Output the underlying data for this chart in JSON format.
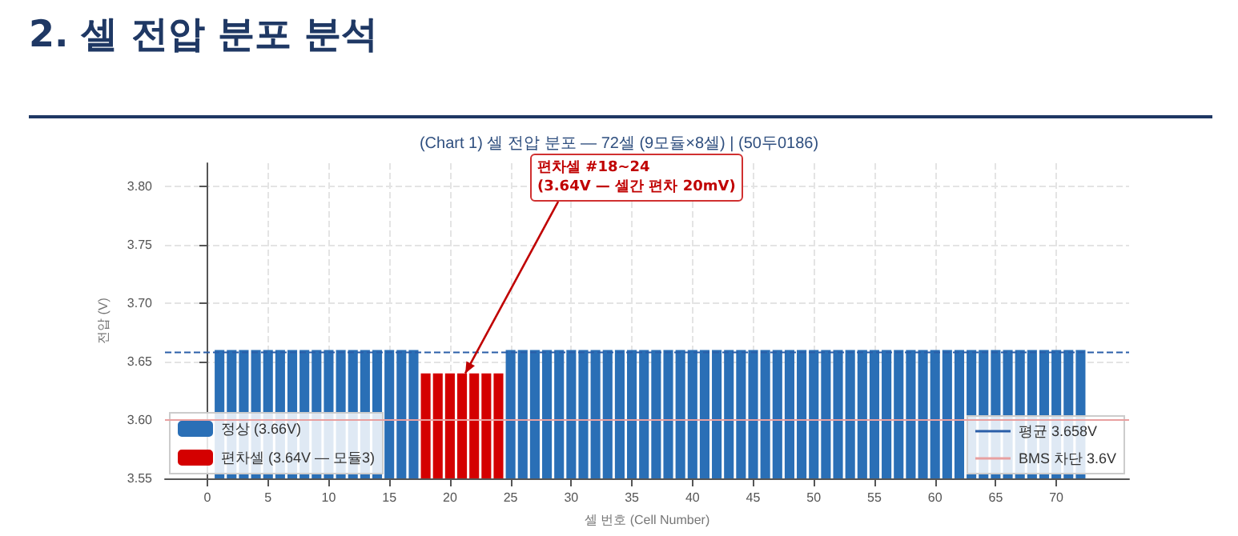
{
  "chart_data": {
    "type": "bar",
    "title": "2. 셀 전압 분포 분석",
    "subtitle": "(Chart 1) 셀 전압 분포 — 72셀 (9모듈×8셀) | (50두0186)",
    "xlabel": "셀 번호 (Cell Number)",
    "ylabel": "전압 (V)",
    "series": [
      {
        "name": "정상 (3.66V)",
        "color": "#2a6fb6",
        "x": [
          1,
          2,
          3,
          4,
          5,
          6,
          7,
          8,
          9,
          10,
          11,
          12,
          13,
          14,
          15,
          16,
          17,
          25,
          26,
          27,
          28,
          29,
          30,
          31,
          32,
          33,
          34,
          35,
          36,
          37,
          38,
          39,
          40,
          41,
          42,
          43,
          44,
          45,
          46,
          47,
          48,
          49,
          50,
          51,
          52,
          53,
          54,
          55,
          56,
          57,
          58,
          59,
          60,
          61,
          62,
          63,
          64,
          65,
          66,
          67,
          68,
          69,
          70,
          71,
          72
        ],
        "values": [
          3.66,
          3.66,
          3.66,
          3.66,
          3.66,
          3.66,
          3.66,
          3.66,
          3.66,
          3.66,
          3.66,
          3.66,
          3.66,
          3.66,
          3.66,
          3.66,
          3.66,
          3.66,
          3.66,
          3.66,
          3.66,
          3.66,
          3.66,
          3.66,
          3.66,
          3.66,
          3.66,
          3.66,
          3.66,
          3.66,
          3.66,
          3.66,
          3.66,
          3.66,
          3.66,
          3.66,
          3.66,
          3.66,
          3.66,
          3.66,
          3.66,
          3.66,
          3.66,
          3.66,
          3.66,
          3.66,
          3.66,
          3.66,
          3.66,
          3.66,
          3.66,
          3.66,
          3.66,
          3.66,
          3.66,
          3.66,
          3.66,
          3.66,
          3.66,
          3.66,
          3.66,
          3.66,
          3.66,
          3.66,
          3.66
        ]
      },
      {
        "name": "편차셀 (3.64V — 모듈3)",
        "color": "#d40000",
        "x": [
          18,
          19,
          20,
          21,
          22,
          23,
          24
        ],
        "values": [
          3.64,
          3.64,
          3.64,
          3.64,
          3.64,
          3.64,
          3.64
        ]
      }
    ],
    "xlim": [
      -3.5,
      76
    ],
    "xticks": [
      0,
      5,
      10,
      15,
      20,
      25,
      30,
      35,
      40,
      45,
      50,
      55,
      60,
      65,
      70
    ],
    "ylim": [
      3.55,
      3.82
    ],
    "yticks": [
      3.55,
      {
        "value": 3.6,
        "label": "3.60"
      },
      3.65,
      {
        "value": 3.7,
        "label": "3.70"
      },
      3.75,
      {
        "value": 3.8,
        "label": "3.80"
      }
    ],
    "ref_lines": [
      {
        "axis": "y",
        "value": 3.658,
        "label": "평균 3.658V",
        "color": "#2a5ea8",
        "line_style": "dashed"
      },
      {
        "axis": "y",
        "value": 3.6,
        "label": "BMS 차단 3.6V",
        "color": "#e8a0a0",
        "line_style": "solid"
      }
    ],
    "annotations": [
      {
        "text": "편차셀 #18~24\n(3.64V — 셀간 편차 20mV)",
        "x": 21,
        "y": 3.64
      }
    ],
    "grid": true,
    "legend": "bottom left"
  }
}
